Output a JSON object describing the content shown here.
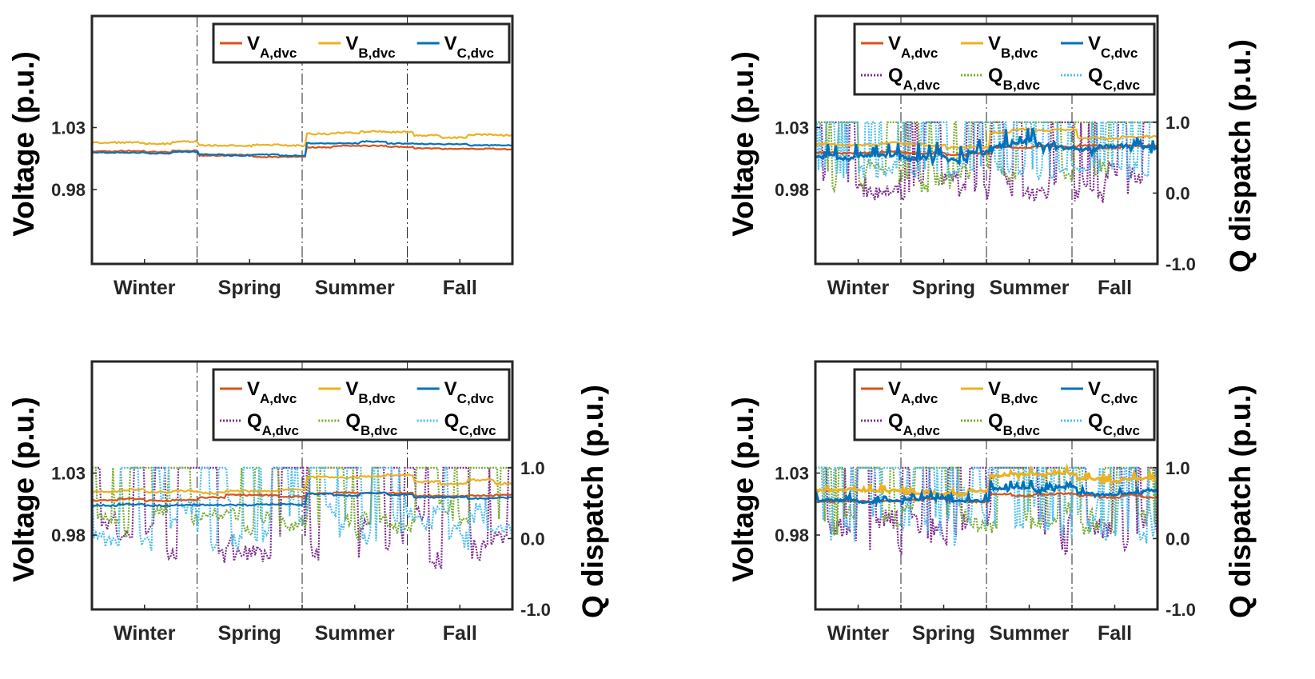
{
  "figure": {
    "colors": {
      "VA": "#D95319",
      "VB": "#EDB120",
      "VC": "#0072BD",
      "QA": "#7E2F8E",
      "QB": "#77AC30",
      "QC": "#4DBEEE",
      "frame": "#262626"
    }
  },
  "chart_data": [
    {
      "id": "top-left",
      "type": "line",
      "ylabel": "Voltage (p.u.)",
      "y2label": "",
      "has_q": false,
      "ylim": [
        0.92,
        1.12
      ],
      "yticks": [
        "0.98",
        "1.03"
      ],
      "y2ticks": [],
      "seasons": [
        "Winter",
        "Spring",
        "Summer",
        "Fall"
      ],
      "legend": [
        {
          "key": "VA",
          "main": "V",
          "sub": "A,dvc",
          "style": "solid"
        },
        {
          "key": "VB",
          "main": "V",
          "sub": "B,dvc",
          "style": "solid"
        },
        {
          "key": "VC",
          "main": "V",
          "sub": "C,dvc",
          "style": "solid"
        }
      ],
      "series": {
        "VA": {
          "base": 1.011,
          "season_offsets": [
            0.0,
            -0.004,
            0.004,
            0.002
          ],
          "noise": 0.002,
          "spikes": 0
        },
        "VB": {
          "base": 1.017,
          "season_offsets": [
            0.001,
            -0.002,
            0.009,
            0.006
          ],
          "noise": 0.003,
          "spikes": 0
        },
        "VC": {
          "base": 1.012,
          "season_offsets": [
            -0.002,
            -0.004,
            0.006,
            0.004
          ],
          "noise": 0.002,
          "spikes": 0
        }
      }
    },
    {
      "id": "top-right",
      "type": "line",
      "ylabel": "Voltage (p.u.)",
      "y2label": "Q dispatch (p.u.)",
      "has_q": true,
      "ylim": [
        0.92,
        1.12
      ],
      "yticks": [
        "0.98",
        "1.03"
      ],
      "y2ticks": [
        "-1.0",
        "0.0",
        "1.0"
      ],
      "y2lim": [
        -1.0,
        2.5
      ],
      "seasons": [
        "Winter",
        "Spring",
        "Summer",
        "Fall"
      ],
      "legend": [
        {
          "key": "VA",
          "main": "V",
          "sub": "A,dvc",
          "style": "solid"
        },
        {
          "key": "VB",
          "main": "V",
          "sub": "B,dvc",
          "style": "solid"
        },
        {
          "key": "VC",
          "main": "V",
          "sub": "C,dvc",
          "style": "solid"
        },
        {
          "key": "QA",
          "main": "Q",
          "sub": "A,dvc",
          "style": "dotted"
        },
        {
          "key": "QB",
          "main": "Q",
          "sub": "B,dvc",
          "style": "dotted"
        },
        {
          "key": "QC",
          "main": "Q",
          "sub": "C,dvc",
          "style": "dotted"
        }
      ],
      "series": {
        "VA": {
          "base": 1.01,
          "season_offsets": [
            0.0,
            -0.002,
            0.005,
            0.004
          ],
          "noise": 0.003,
          "spikes": 0
        },
        "VB": {
          "base": 1.017,
          "season_offsets": [
            0.0,
            -0.002,
            0.01,
            0.006
          ],
          "noise": 0.004,
          "spikes": 0
        },
        "VC": {
          "base": 1.01,
          "season_offsets": [
            -0.003,
            -0.002,
            0.007,
            0.004
          ],
          "noise": 0.008,
          "spikes": 1
        },
        "QA": {
          "low": 0.05,
          "high": 1.0,
          "noise": 0.2,
          "switching": 0.35
        },
        "QB": {
          "low": 0.2,
          "high": 1.0,
          "noise": 0.2,
          "switching": 0.3
        },
        "QC": {
          "low": 0.3,
          "high": 1.0,
          "noise": 0.1,
          "switching": 0.6
        }
      }
    },
    {
      "id": "bottom-left",
      "type": "line",
      "ylabel": "Voltage (p.u.)",
      "y2label": "Q dispatch (p.u.)",
      "has_q": true,
      "ylim": [
        0.92,
        1.12
      ],
      "yticks": [
        "0.98",
        "1.03"
      ],
      "y2ticks": [
        "-1.0",
        "0.0",
        "1.0"
      ],
      "y2lim": [
        -1.0,
        2.5
      ],
      "seasons": [
        "Winter",
        "Spring",
        "Summer",
        "Fall"
      ],
      "legend": [
        {
          "key": "VA",
          "main": "V",
          "sub": "A,dvc",
          "style": "solid"
        },
        {
          "key": "VB",
          "main": "V",
          "sub": "B,dvc",
          "style": "solid"
        },
        {
          "key": "VC",
          "main": "V",
          "sub": "C,dvc",
          "style": "solid"
        },
        {
          "key": "QA",
          "main": "Q",
          "sub": "A,dvc",
          "style": "dotted"
        },
        {
          "key": "QB",
          "main": "Q",
          "sub": "B,dvc",
          "style": "dotted"
        },
        {
          "key": "QC",
          "main": "Q",
          "sub": "C,dvc",
          "style": "dotted"
        }
      ],
      "series": {
        "VA": {
          "base": 1.008,
          "season_offsets": [
            0.0,
            0.003,
            0.006,
            0.004
          ],
          "noise": 0.003,
          "spikes": 0
        },
        "VB": {
          "base": 1.015,
          "season_offsets": [
            0.0,
            0.0,
            0.012,
            0.008
          ],
          "noise": 0.004,
          "spikes": 0
        },
        "VC": {
          "base": 1.005,
          "season_offsets": [
            -0.001,
            0.0,
            0.008,
            0.005
          ],
          "noise": 0.003,
          "spikes": 0
        },
        "QA": {
          "low": -0.1,
          "high": 1.0,
          "noise": 0.3,
          "switching": 0.25
        },
        "QB": {
          "low": 0.2,
          "high": 1.0,
          "noise": 0.2,
          "switching": 0.25
        },
        "QC": {
          "low": 0.1,
          "high": 1.0,
          "noise": 0.3,
          "switching": 0.3
        }
      }
    },
    {
      "id": "bottom-right",
      "type": "line",
      "ylabel": "Voltage (p.u.)",
      "y2label": "Q dispatch (p.u.)",
      "has_q": true,
      "ylim": [
        0.92,
        1.12
      ],
      "yticks": [
        "0.98",
        "1.03"
      ],
      "y2ticks": [
        "-1.0",
        "0.0",
        "1.0"
      ],
      "y2lim": [
        -1.0,
        2.5
      ],
      "seasons": [
        "Winter",
        "Spring",
        "Summer",
        "Fall"
      ],
      "legend": [
        {
          "key": "VA",
          "main": "V",
          "sub": "A,dvc",
          "style": "solid"
        },
        {
          "key": "VB",
          "main": "V",
          "sub": "B,dvc",
          "style": "solid"
        },
        {
          "key": "VC",
          "main": "V",
          "sub": "C,dvc",
          "style": "solid"
        },
        {
          "key": "QA",
          "main": "Q",
          "sub": "A,dvc",
          "style": "dotted"
        },
        {
          "key": "QB",
          "main": "Q",
          "sub": "B,dvc",
          "style": "dotted"
        },
        {
          "key": "QC",
          "main": "Q",
          "sub": "C,dvc",
          "style": "dotted"
        }
      ],
      "series": {
        "VA": {
          "base": 1.007,
          "season_offsets": [
            0.0,
            0.001,
            0.006,
            0.004
          ],
          "noise": 0.003,
          "spikes": 0
        },
        "VB": {
          "base": 1.016,
          "season_offsets": [
            0.0,
            -0.002,
            0.012,
            0.008
          ],
          "noise": 0.004,
          "spikes": 1
        },
        "VC": {
          "base": 1.009,
          "season_offsets": [
            -0.001,
            0.0,
            0.008,
            0.005
          ],
          "noise": 0.004,
          "spikes": 1
        },
        "QA": {
          "low": 0.0,
          "high": 1.0,
          "noise": 0.3,
          "switching": 0.3
        },
        "QB": {
          "low": 0.2,
          "high": 1.0,
          "noise": 0.2,
          "switching": 0.35
        },
        "QC": {
          "low": 0.2,
          "high": 1.0,
          "noise": 0.3,
          "switching": 0.5
        }
      }
    }
  ]
}
